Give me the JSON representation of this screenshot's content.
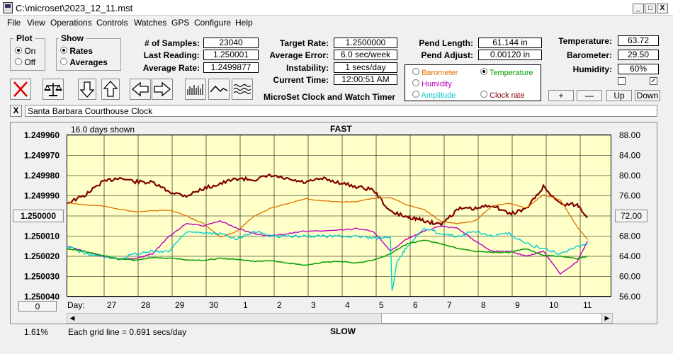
{
  "window": {
    "title": "C:\\microset\\2023_12_11.mst",
    "minimize": "_",
    "maximize": "□",
    "close": "X"
  },
  "menu": [
    "File",
    "View",
    "Operations",
    "Controls",
    "Watches",
    "GPS",
    "Configure",
    "Help"
  ],
  "plot_group": {
    "title": "Plot",
    "options": [
      "On",
      "Off"
    ],
    "selected": "On"
  },
  "show_group": {
    "title": "Show",
    "options": [
      "Rates",
      "Averages"
    ],
    "selected": "Rates"
  },
  "stats": {
    "samples_label": "# of Samples:",
    "samples": "23040",
    "last_reading_label": "Last Reading:",
    "last_reading": "1.250001",
    "average_rate_label": "Average Rate:",
    "average_rate": "1.2499877",
    "target_rate_label": "Target Rate:",
    "target_rate": "1.2500000",
    "average_error_label": "Average Error:",
    "average_error": "6.0 sec/week",
    "instability_label": "Instability:",
    "instability": "1 secs/day",
    "current_time_label": "Current Time:",
    "current_time": "12:00:51 AM",
    "pend_length_label": "Pend Length:",
    "pend_length": "61.144 in",
    "pend_adjust_label": "Pend Adjust:",
    "pend_adjust": "0.00120 in",
    "temperature_label": "Temperature:",
    "temperature": "63.72",
    "barometer_label": "Barometer:",
    "barometer": "29.50",
    "humidity_label": "Humidity:",
    "humidity": "60%"
  },
  "app_title": "MicroSet Clock and Watch Timer",
  "second_axis": {
    "options": [
      {
        "label": "Barometer",
        "color": "#e07000",
        "selected": false
      },
      {
        "label": "Temperature",
        "color": "#00a000",
        "selected": true
      },
      {
        "label": "Humidity",
        "color": "#c000c0",
        "selected": false
      },
      {
        "label": "Clock rate",
        "color": "#800000",
        "selected": false
      },
      {
        "label": "Amplitude",
        "color": "#00c8c8",
        "selected": false
      }
    ]
  },
  "right_buttons": [
    "+",
    "—",
    "Up",
    "Down"
  ],
  "checkboxes": {
    "left": false,
    "right": true,
    "right_mark": "✓"
  },
  "watch_name": "Santa Barbara Courthouse Clock",
  "watch_close": "X",
  "chart_data": {
    "type": "line",
    "title": "FAST",
    "bottom_label": "SLOW",
    "days_shown": "16.0 days shown",
    "grid_note": "Each grid line = 0.691 secs/day",
    "zoom_percent": "1.61%",
    "left_reset": "0",
    "xlabel": "Day:",
    "x_ticks": [
      "27",
      "28",
      "29",
      "30",
      "1",
      "2",
      "3",
      "4",
      "5",
      "6",
      "7",
      "8",
      "9",
      "10",
      "11"
    ],
    "y_ticks": [
      "1.249960",
      "1.249970",
      "1.249980",
      "1.249990",
      "1.250000",
      "1.250010",
      "1.250020",
      "1.250030",
      "1.250040"
    ],
    "y_center_label": "1.250000",
    "ylim": [
      1.24996,
      1.25004
    ],
    "y2_ticks": [
      "88.00",
      "84.00",
      "80.00",
      "76.00",
      "72.00",
      "68.00",
      "64.00",
      "60.00",
      "56.00"
    ],
    "y2_center_label": "72.00",
    "y2lim": [
      56,
      88
    ],
    "grid": true,
    "series": [
      {
        "name": "Clock rate",
        "color": "#800000",
        "width": 2.2,
        "x": [
          0,
          0.5,
          1,
          1.5,
          2,
          2.5,
          3,
          3.5,
          4,
          4.5,
          5,
          5.5,
          6,
          6.5,
          7,
          7.5,
          8,
          8.5,
          9,
          9.5,
          10,
          10.3,
          10.6,
          11,
          11.5,
          12,
          12.5,
          13,
          13.5,
          14,
          14.5,
          15,
          15.3
        ],
        "y": [
          1.2499935,
          1.24999,
          1.2499835,
          1.249981,
          1.249983,
          1.2499835,
          1.249988,
          1.24999,
          1.2499865,
          1.249984,
          1.2499815,
          1.249982,
          1.24998,
          1.249982,
          1.2499835,
          1.2499815,
          1.2499835,
          1.2499855,
          1.249987,
          1.249998,
          1.2500005,
          1.2500015,
          1.250003,
          1.250004,
          1.2499965,
          1.2499965,
          1.2499945,
          1.249999,
          1.2499965,
          1.2499855,
          1.249994,
          1.2499945,
          1.2500005
        ]
      },
      {
        "name": "Barometer",
        "color": "#e07000",
        "width": 1.3,
        "y2": true,
        "x": [
          0,
          0.5,
          1,
          1.5,
          2,
          2.5,
          3,
          3.5,
          4,
          4.5,
          5,
          5.5,
          6,
          6.5,
          7,
          7.5,
          8,
          8.5,
          9,
          9.5,
          10,
          10.5,
          11,
          11.5,
          12,
          12.5,
          13,
          13.5,
          14,
          14.5,
          15,
          15.3
        ],
        "y": [
          74.6,
          74.2,
          74.0,
          73.4,
          72.8,
          73.0,
          73.2,
          72.0,
          70.5,
          67.8,
          69.0,
          72.0,
          73.6,
          74.5,
          75.4,
          75.0,
          74.8,
          74.8,
          75.5,
          75.7,
          74.2,
          73.2,
          70.9,
          70.5,
          71.0,
          74.0,
          74.5,
          73.6,
          76.2,
          75.2,
          69.8,
          67.3
        ]
      },
      {
        "name": "Humidity",
        "color": "#c000c0",
        "width": 1.4,
        "y2": true,
        "x": [
          0,
          0.5,
          1,
          1.5,
          2,
          2.5,
          3,
          3.5,
          4,
          4.5,
          5,
          5.5,
          6,
          6.5,
          7,
          7.5,
          8,
          8.5,
          9,
          9.5,
          10,
          10.5,
          11,
          11.5,
          12,
          12.5,
          13,
          13.5,
          14,
          14.5,
          15,
          15.3
        ],
        "y": [
          66.0,
          65.0,
          64.0,
          63.5,
          63.5,
          64.5,
          68.0,
          70.5,
          70.0,
          71.0,
          69.5,
          68.5,
          68.0,
          68.5,
          69.0,
          69.0,
          69.2,
          69.5,
          69.0,
          65.0,
          67.5,
          69.0,
          70.0,
          69.5,
          67.0,
          65.0,
          65.0,
          64.0,
          65.0,
          60.5,
          63.0,
          67.0
        ]
      },
      {
        "name": "Amplitude",
        "color": "#00d0d0",
        "width": 1.4,
        "y2": true,
        "x": [
          0,
          0.5,
          1,
          1.5,
          2,
          2.5,
          3,
          3.5,
          4,
          4.5,
          5,
          5.5,
          6,
          6.5,
          7,
          7.5,
          8,
          8.5,
          9,
          9.5,
          9.55,
          9.7,
          10,
          10.5,
          11,
          11.5,
          12,
          12.5,
          13,
          13.5,
          14,
          14.5,
          15,
          15.3
        ],
        "y": [
          66.0,
          64.5,
          64.0,
          63.5,
          64.5,
          65.0,
          65.0,
          69.0,
          68.5,
          68.5,
          67.5,
          69.0,
          68.0,
          68.0,
          68.0,
          68.0,
          68.0,
          68.0,
          67.5,
          68.0,
          57.0,
          63.0,
          66.0,
          69.5,
          68.5,
          68.0,
          69.0,
          68.0,
          68.5,
          66.5,
          65.5,
          64.5,
          66.0,
          66.5
        ]
      },
      {
        "name": "Temperature",
        "color": "#10a010",
        "width": 1.6,
        "y2": true,
        "x": [
          0,
          0.5,
          1,
          1.5,
          2,
          2.5,
          3,
          3.5,
          4,
          4.5,
          5,
          5.5,
          6,
          6.5,
          7,
          7.5,
          8,
          8.5,
          9,
          9.5,
          10,
          10.5,
          11,
          11.5,
          12,
          12.5,
          13,
          13.5,
          14,
          14.5,
          15,
          15.3
        ],
        "y": [
          65.5,
          65.0,
          64.2,
          63.5,
          63.2,
          63.8,
          63.6,
          63.3,
          63.2,
          63.6,
          63.4,
          63.0,
          63.2,
          62.6,
          62.2,
          62.8,
          63.0,
          62.7,
          63.2,
          64.5,
          66.5,
          67.2,
          66.5,
          65.5,
          65.0,
          64.8,
          64.8,
          65.5,
          64.2,
          64.0,
          63.5,
          64.0
        ]
      }
    ]
  }
}
